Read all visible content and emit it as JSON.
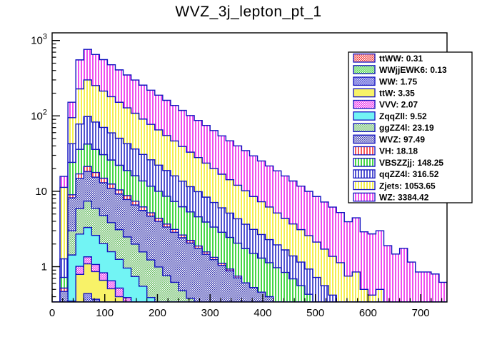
{
  "title": "WVZ_3j_lepton_pt_1",
  "colors": {
    "background": "#ffffff",
    "frame": "#000000",
    "text": "#000000",
    "outline": "#1212c0",
    "legend_border": "#000000",
    "legend_background": "#ffffff"
  },
  "chart_data": {
    "type": "stacked-step-histogram",
    "title": "WVZ_3j_lepton_pt_1",
    "xlabel": "",
    "ylabel": "",
    "xscale": "linear",
    "yscale": "log",
    "xlim": [
      0,
      750
    ],
    "ylim": [
      0.34,
      1263
    ],
    "grid": false,
    "legend_position": "top-right",
    "bin_start": 0,
    "bin_width": 15,
    "n_bins": 50,
    "x_ticks": [
      {
        "v": 0,
        "label": "0"
      },
      {
        "v": 100,
        "label": "100"
      },
      {
        "v": 200,
        "label": "200"
      },
      {
        "v": 300,
        "label": "300"
      },
      {
        "v": 400,
        "label": "400"
      },
      {
        "v": 500,
        "label": "500"
      },
      {
        "v": 600,
        "label": "600"
      },
      {
        "v": 700,
        "label": "700"
      }
    ],
    "x_minor_step": 20,
    "y_ticks": [
      {
        "v": 1,
        "base": "1",
        "sup": ""
      },
      {
        "v": 10,
        "base": "10",
        "sup": ""
      },
      {
        "v": 100,
        "base": "10",
        "sup": "2"
      },
      {
        "v": 1000,
        "base": "10",
        "sup": "3"
      }
    ],
    "series": [
      {
        "name": "ttWW",
        "legend_label": "ttWW: 0.31",
        "total": 0.31,
        "fill": "checker",
        "color": "#f23030",
        "values": [
          0,
          0,
          0,
          0.04,
          0.06,
          0.06,
          0.05,
          0.04,
          0.03,
          0.02,
          0.01
        ]
      },
      {
        "name": "WWjjEWK6",
        "legend_label": "WWjjEWK6: 0.13",
        "total": 0.13,
        "fill": "checker",
        "color": "#2ecc2e",
        "values": [
          0,
          0,
          0,
          0,
          0.03,
          0.03,
          0.02,
          0.02,
          0.02,
          0.01
        ]
      },
      {
        "name": "WW",
        "legend_label": "WW: 1.75",
        "total": 1.75,
        "fill": "checker",
        "color": "#2929cc",
        "values": [
          0,
          0,
          0.08,
          0.25,
          0.35,
          0.28,
          0.22,
          0.18,
          0.14,
          0.11,
          0.09,
          0.05
        ]
      },
      {
        "name": "ttW",
        "legend_label": "ttW: 3.35",
        "total": 3.35,
        "fill": "solid",
        "color": "#f8f268",
        "values": [
          0,
          0,
          0.13,
          0.5,
          0.65,
          0.49,
          0.37,
          0.27,
          0.21,
          0.15,
          0.12,
          0.09,
          0.07,
          0.05
        ]
      },
      {
        "name": "VVV",
        "legend_label": "VVV: 2.07",
        "total": 2.07,
        "fill": "checker",
        "color": "#ea25ea",
        "values": [
          0,
          0.02,
          0.14,
          0.22,
          0.26,
          0.21,
          0.17,
          0.14,
          0.12,
          0.1,
          0.08,
          0.07,
          0.05,
          0.04,
          0.04,
          0.03
        ]
      },
      {
        "name": "ZqqZll",
        "legend_label": "ZqqZll: 9.52",
        "total": 9.52,
        "fill": "solid",
        "color": "#72f4f4",
        "values": [
          0,
          0.05,
          1.08,
          1.7,
          1.96,
          1.53,
          1.19,
          0.93,
          0.73,
          0.57,
          0.44,
          0.34,
          0.27,
          0.21,
          0.16,
          0.13,
          0.1,
          0.07,
          0.05
        ]
      },
      {
        "name": "ggZZ4l",
        "legend_label": "ggZZ4l: 23.19",
        "total": 23.19,
        "fill": "checker",
        "color": "#62b85c",
        "values": [
          0,
          0.1,
          1.56,
          3.2,
          4.1,
          3.36,
          2.76,
          2.26,
          1.85,
          1.52,
          1.25,
          1.02,
          0.84,
          0.69,
          0.56,
          0.46,
          0.38,
          0.31,
          0.25,
          0.2,
          0.15,
          0.1,
          0.06
        ]
      },
      {
        "name": "WVZ",
        "legend_label": "WVZ: 97.49",
        "total": 97.49,
        "fill": "checker",
        "color": "#3434ad",
        "values": [
          0,
          0.3,
          5.2,
          8.9,
          10.9,
          9.4,
          8.2,
          7.1,
          6.1,
          5.3,
          4.6,
          4.0,
          3.45,
          3.0,
          2.6,
          2.24,
          1.94,
          1.68,
          1.45,
          1.26,
          1.09,
          0.94,
          0.82,
          0.71,
          0.61,
          0.53,
          0.46,
          0.4,
          0.34,
          0.3,
          0.22,
          0.15,
          0.08
        ]
      },
      {
        "name": "VH",
        "legend_label": "VH: 18.18",
        "total": 18.18,
        "fill": "vlines",
        "color": "#f32222",
        "values": [
          0,
          0.05,
          0.8,
          2.2,
          3.0,
          2.4,
          1.92,
          1.54,
          1.23,
          0.98,
          0.79,
          0.63,
          0.5,
          0.4,
          0.32,
          0.26,
          0.21,
          0.17,
          0.13,
          0.11,
          0.09,
          0.07,
          0.05,
          0.04
        ]
      },
      {
        "name": "VBSZZjj",
        "legend_label": "VBSZZjj: 148.25",
        "total": 148.25,
        "fill": "vlines",
        "color": "#09c909",
        "values": [
          0,
          0.2,
          15.2,
          19,
          21,
          18.1,
          15.7,
          13.5,
          11.7,
          10.1,
          8.7,
          7.5,
          6.5,
          5.6,
          4.9,
          4.2,
          3.6,
          3.1,
          2.7,
          2.34,
          2.02,
          1.75,
          1.51,
          1.3,
          1.13,
          0.97,
          0.84,
          0.73,
          0.63,
          0.54,
          0.47,
          0.41,
          0.35,
          0.3,
          0.2,
          0.12,
          0.06
        ]
      },
      {
        "name": "qqZZ4l",
        "legend_label": "qqZZ4l: 316.52",
        "total": 316.52,
        "fill": "vlines",
        "color": "#1717c2",
        "values": [
          0,
          0.55,
          18.5,
          42,
          55.7,
          47,
          39.8,
          33.6,
          28.4,
          24,
          20.3,
          17.1,
          14.5,
          12.2,
          10.3,
          8.7,
          7.4,
          6.2,
          5.3,
          4.45,
          3.76,
          3.18,
          2.7,
          2.27,
          1.92,
          1.62,
          1.37,
          1.16,
          0.98,
          0.83,
          0.7,
          0.59,
          0.5,
          0.42,
          0.36,
          0.3,
          0.22,
          0.15,
          0.1
        ]
      },
      {
        "name": "Zjets",
        "legend_label": "Zjets: 1053.65",
        "total": 1053.65,
        "fill": "vlines",
        "color": "#f0ea12",
        "values": [
          0,
          10,
          52,
          150,
          202,
          170,
          143,
          120,
          101,
          85,
          72,
          60,
          51,
          43,
          36,
          30.5,
          25.6,
          21.5,
          18.1,
          15.3,
          12.9,
          10.8,
          9.1,
          7.7,
          6.5,
          5.4,
          4.6,
          3.9,
          3.2,
          2.7,
          2.3,
          1.95,
          1.65,
          1.4,
          1.15,
          0.95,
          0.85,
          0.6,
          0.75,
          0.5,
          0.42,
          0.5,
          0.3,
          0.12,
          0.25,
          0.1,
          0.05
        ]
      },
      {
        "name": "WZ",
        "legend_label": "WZ: 3384.42",
        "total": 3384.42,
        "fill": "vlines",
        "color": "#ea12ea",
        "values": [
          0,
          4.5,
          57,
          325,
          462,
          399,
          344,
          297,
          256,
          221,
          191,
          165,
          142,
          123,
          106,
          91,
          79,
          68,
          59,
          51,
          44,
          37.5,
          32.5,
          28,
          24.5,
          21,
          18,
          15.5,
          13.5,
          11.6,
          10.0,
          8.6,
          7.4,
          6.4,
          5.5,
          4.8,
          4.1,
          3.2,
          3.6,
          2.4,
          2.3,
          2.5,
          1.6,
          1.35,
          1.5,
          1.05,
          0.8,
          0.85,
          0.8,
          0.62
        ]
      }
    ]
  }
}
